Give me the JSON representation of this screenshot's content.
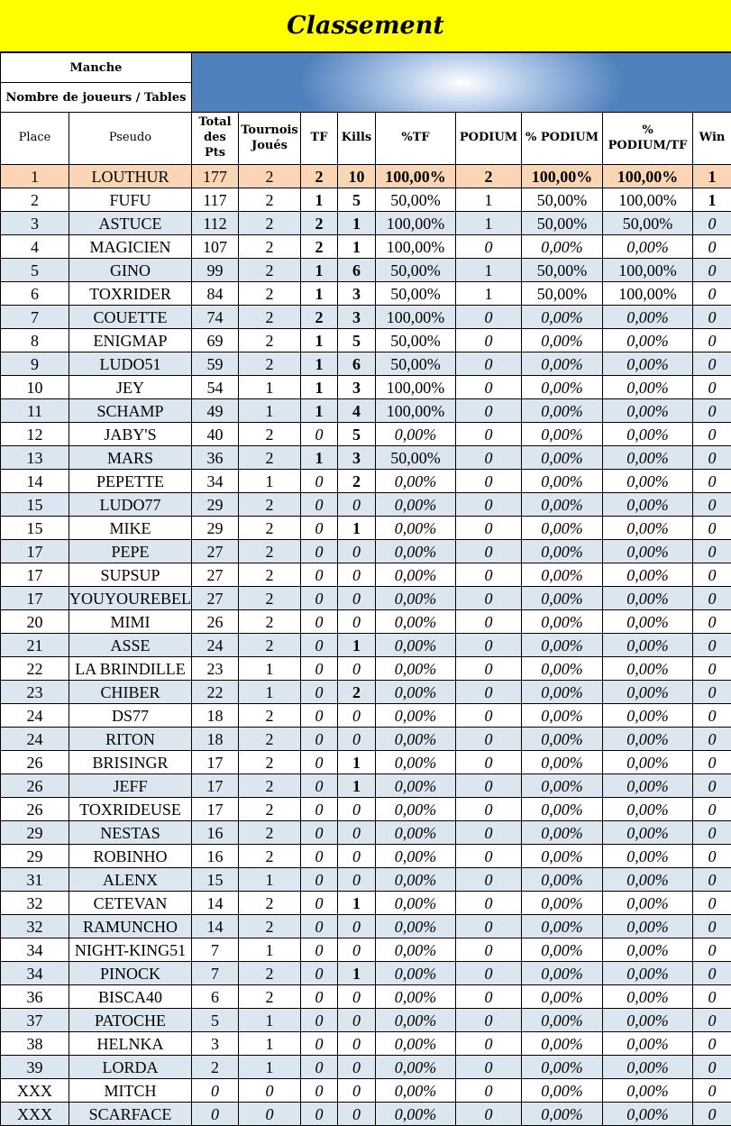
{
  "title": "Classement",
  "info": {
    "manche": "Manche",
    "joueurs": "Nombre de joueurs / Tables"
  },
  "table": {
    "header": [
      "Place",
      "Pseudo",
      "Total des Pts",
      "Tournois Joués",
      "TF",
      "Kills",
      "%TF",
      "PODIUM",
      "% PODIUM",
      "% PODIUM/TF",
      "Win"
    ],
    "rows": [
      [
        "1",
        "LOUTHUR",
        "177",
        "2",
        "2",
        "10",
        "100,00%",
        "2",
        "100,00%",
        "100,00%",
        "1"
      ],
      [
        "2",
        "FUFU",
        "117",
        "2",
        "1",
        "5",
        "50,00%",
        "1",
        "50,00%",
        "100,00%",
        "1"
      ],
      [
        "3",
        "ASTUCE",
        "112",
        "2",
        "2",
        "1",
        "100,00%",
        "1",
        "50,00%",
        "50,00%",
        "0"
      ],
      [
        "4",
        "MAGICIEN",
        "107",
        "2",
        "2",
        "1",
        "100,00%",
        "0",
        "0,00%",
        "0,00%",
        "0"
      ],
      [
        "5",
        "GINO",
        "99",
        "2",
        "1",
        "6",
        "50,00%",
        "1",
        "50,00%",
        "100,00%",
        "0"
      ],
      [
        "6",
        "TOXRIDER",
        "84",
        "2",
        "1",
        "3",
        "50,00%",
        "1",
        "50,00%",
        "100,00%",
        "0"
      ],
      [
        "7",
        "COUETTE",
        "74",
        "2",
        "2",
        "3",
        "100,00%",
        "0",
        "0,00%",
        "0,00%",
        "0"
      ],
      [
        "8",
        "ENIGMAP",
        "69",
        "2",
        "1",
        "5",
        "50,00%",
        "0",
        "0,00%",
        "0,00%",
        "0"
      ],
      [
        "9",
        "LUDO51",
        "59",
        "2",
        "1",
        "6",
        "50,00%",
        "0",
        "0,00%",
        "0,00%",
        "0"
      ],
      [
        "10",
        "JEY",
        "54",
        "1",
        "1",
        "3",
        "100,00%",
        "0",
        "0,00%",
        "0,00%",
        "0"
      ],
      [
        "11",
        "SCHAMP",
        "49",
        "1",
        "1",
        "4",
        "100,00%",
        "0",
        "0,00%",
        "0,00%",
        "0"
      ],
      [
        "12",
        "JABY'S",
        "40",
        "2",
        "0",
        "5",
        "0,00%",
        "0",
        "0,00%",
        "0,00%",
        "0"
      ],
      [
        "13",
        "MARS",
        "36",
        "2",
        "1",
        "3",
        "50,00%",
        "0",
        "0,00%",
        "0,00%",
        "0"
      ],
      [
        "14",
        "PEPETTE",
        "34",
        "1",
        "0",
        "2",
        "0,00%",
        "0",
        "0,00%",
        "0,00%",
        "0"
      ],
      [
        "15",
        "LUDO77",
        "29",
        "2",
        "0",
        "0",
        "0,00%",
        "0",
        "0,00%",
        "0,00%",
        "0"
      ],
      [
        "15",
        "MIKE",
        "29",
        "2",
        "0",
        "1",
        "0,00%",
        "0",
        "0,00%",
        "0,00%",
        "0"
      ],
      [
        "17",
        "PEPE",
        "27",
        "2",
        "0",
        "0",
        "0,00%",
        "0",
        "0,00%",
        "0,00%",
        "0"
      ],
      [
        "17",
        "SUPSUP",
        "27",
        "2",
        "0",
        "0",
        "0,00%",
        "0",
        "0,00%",
        "0,00%",
        "0"
      ],
      [
        "17",
        "YOUYOUREBEL",
        "27",
        "2",
        "0",
        "0",
        "0,00%",
        "0",
        "0,00%",
        "0,00%",
        "0"
      ],
      [
        "20",
        "MIMI",
        "26",
        "2",
        "0",
        "0",
        "0,00%",
        "0",
        "0,00%",
        "0,00%",
        "0"
      ],
      [
        "21",
        "ASSE",
        "24",
        "2",
        "0",
        "1",
        "0,00%",
        "0",
        "0,00%",
        "0,00%",
        "0"
      ],
      [
        "22",
        "LA BRINDILLE",
        "23",
        "1",
        "0",
        "0",
        "0,00%",
        "0",
        "0,00%",
        "0,00%",
        "0"
      ],
      [
        "23",
        "CHIBER",
        "22",
        "1",
        "0",
        "2",
        "0,00%",
        "0",
        "0,00%",
        "0,00%",
        "0"
      ],
      [
        "24",
        "DS77",
        "18",
        "2",
        "0",
        "0",
        "0,00%",
        "0",
        "0,00%",
        "0,00%",
        "0"
      ],
      [
        "24",
        "RITON",
        "18",
        "2",
        "0",
        "0",
        "0,00%",
        "0",
        "0,00%",
        "0,00%",
        "0"
      ],
      [
        "26",
        "BRISINGR",
        "17",
        "2",
        "0",
        "1",
        "0,00%",
        "0",
        "0,00%",
        "0,00%",
        "0"
      ],
      [
        "26",
        "JEFF",
        "17",
        "2",
        "0",
        "1",
        "0,00%",
        "0",
        "0,00%",
        "0,00%",
        "0"
      ],
      [
        "26",
        "TOXRIDEUSE",
        "17",
        "2",
        "0",
        "0",
        "0,00%",
        "0",
        "0,00%",
        "0,00%",
        "0"
      ],
      [
        "29",
        "NESTAS",
        "16",
        "2",
        "0",
        "0",
        "0,00%",
        "0",
        "0,00%",
        "0,00%",
        "0"
      ],
      [
        "29",
        "ROBINHO",
        "16",
        "2",
        "0",
        "0",
        "0,00%",
        "0",
        "0,00%",
        "0,00%",
        "0"
      ],
      [
        "31",
        "ALENX",
        "15",
        "1",
        "0",
        "0",
        "0,00%",
        "0",
        "0,00%",
        "0,00%",
        "0"
      ],
      [
        "32",
        "CETEVAN",
        "14",
        "2",
        "0",
        "1",
        "0,00%",
        "0",
        "0,00%",
        "0,00%",
        "0"
      ],
      [
        "32",
        "RAMUNCHO",
        "14",
        "2",
        "0",
        "0",
        "0,00%",
        "0",
        "0,00%",
        "0,00%",
        "0"
      ],
      [
        "34",
        "NIGHT-KING51",
        "7",
        "1",
        "0",
        "0",
        "0,00%",
        "0",
        "0,00%",
        "0,00%",
        "0"
      ],
      [
        "34",
        "PINOCK",
        "7",
        "2",
        "0",
        "1",
        "0,00%",
        "0",
        "0,00%",
        "0,00%",
        "0"
      ],
      [
        "36",
        "BISCA40",
        "6",
        "2",
        "0",
        "0",
        "0,00%",
        "0",
        "0,00%",
        "0,00%",
        "0"
      ],
      [
        "37",
        "PATOCHE",
        "5",
        "1",
        "0",
        "0",
        "0,00%",
        "0",
        "0,00%",
        "0,00%",
        "0"
      ],
      [
        "38",
        "HELNKA",
        "3",
        "1",
        "0",
        "0",
        "0,00%",
        "0",
        "0,00%",
        "0,00%",
        "0"
      ],
      [
        "39",
        "LORDA",
        "2",
        "1",
        "0",
        "0",
        "0,00%",
        "0",
        "0,00%",
        "0,00%",
        "0"
      ],
      [
        "XXX",
        "MITCH",
        "0",
        "0",
        "0",
        "0",
        "0,00%",
        "0",
        "0,00%",
        "0,00%",
        "0"
      ],
      [
        "XXX",
        "SCARFACE",
        "0",
        "0",
        "0",
        "0",
        "0,00%",
        "0",
        "0,00%",
        "0,00%",
        "0"
      ]
    ]
  }
}
